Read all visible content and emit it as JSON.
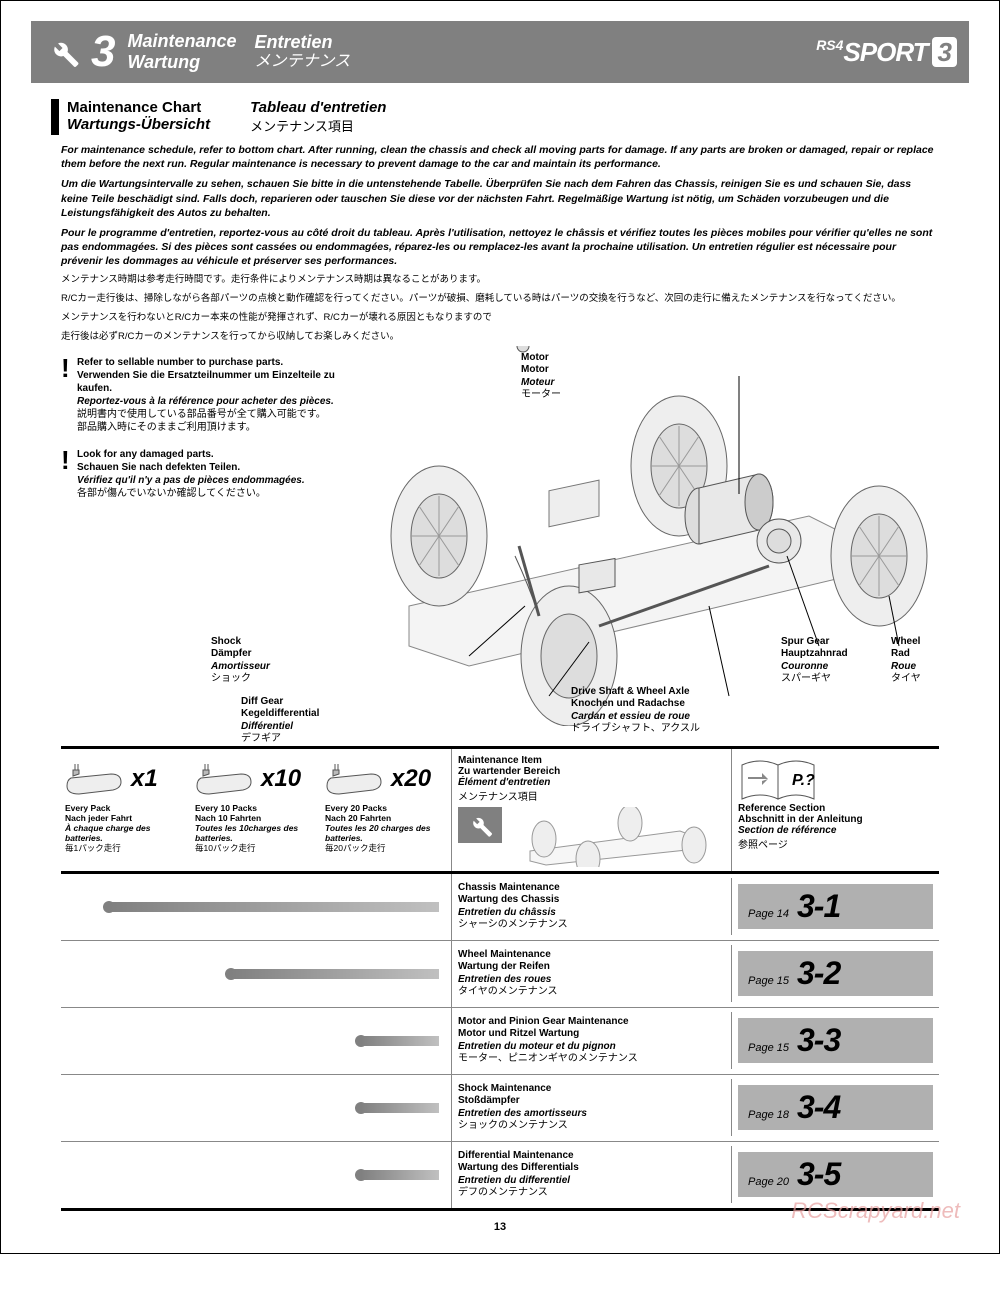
{
  "header": {
    "section_num": "3",
    "title_en": "Maintenance",
    "title_de": "Wartung",
    "title_fr": "Entretien",
    "title_jp": "メンテナンス",
    "logo_prefix": "RS4",
    "logo_main": "SPORT",
    "logo_suffix": "3"
  },
  "subheader": {
    "en": "Maintenance Chart",
    "de": "Wartungs-Übersicht",
    "fr": "Tableau d'entretien",
    "jp": "メンテナンス項目"
  },
  "intro": {
    "en": "For maintenance schedule, refer to bottom chart. After running, clean the chassis and check all moving parts for damage. If any parts are broken or damaged, repair or replace them before the next run. Regular maintenance is necessary to prevent damage to the car and maintain its performance.",
    "de": "Um die Wartungsintervalle zu sehen, schauen Sie bitte in die untenstehende Tabelle. Überprüfen Sie nach dem Fahren das Chassis, reinigen Sie es und schauen Sie, dass keine Teile beschädigt sind. Falls doch, reparieren oder tauschen Sie diese vor der nächsten Fahrt. Regelmäßige Wartung ist nötig, um Schäden vorzubeugen und die Leistungsfähigkeit des Autos zu behalten.",
    "fr": "Pour le programme d'entretien, reportez-vous au côté droit du tableau. Après l'utilisation, nettoyez le châssis et vérifiez toutes les pièces mobiles pour vérifier qu'elles ne sont pas endommagées. Si des pièces sont cassées ou endommagées, réparez-les ou remplacez-les avant la prochaine utilisation. Un entretien régulier est nécessaire pour prévenir les dommages au véhicule et préserver ses performances.",
    "jp1": "メンテナンス時期は参考走行時間です。走行条件によりメンテナンス時期は異なることがあります。",
    "jp2": "R/Cカー走行後は、掃除しながら各部パーツの点検と動作確認を行ってください。パーツが破損、磨耗している時はパーツの交換を行うなど、次回の走行に備えたメンテナンスを行なってください。",
    "jp3": "メンテナンスを行わないとR/Cカー本来の性能が発揮されず、R/Cカーが壊れる原因ともなりますので",
    "jp4": "走行後は必ずR/Cカーのメンテナンスを行ってから収納してお楽しみください。"
  },
  "notes": {
    "n1_en": "Refer to sellable number to purchase parts.",
    "n1_de": "Verwenden Sie die Ersatzteilnummer um Einzelteile zu kaufen.",
    "n1_fr": "Reportez-vous à la référence pour acheter des pièces.",
    "n1_jp1": "説明書内で使用している部品番号が全て購入可能です。",
    "n1_jp2": "部品購入時にそのままご利用頂けます。",
    "n2_en": "Look for any damaged parts.",
    "n2_de": "Schauen Sie nach defekten Teilen.",
    "n2_fr": "Vérifiez qu'il n'y a pas de pièces endommagées.",
    "n2_jp": "各部が傷んでいないか確認してください。"
  },
  "callouts": {
    "motor": {
      "en": "Motor",
      "de": "Motor",
      "fr": "Moteur",
      "jp": "モーター"
    },
    "shock": {
      "en": "Shock",
      "de": "Dämpfer",
      "fr": "Amortisseur",
      "jp": "ショック"
    },
    "diff": {
      "en": "Diff Gear",
      "de": "Kegeldifferential",
      "fr": "Différentiel",
      "jp": "デフギア"
    },
    "drive": {
      "en": "Drive Shaft & Wheel Axle",
      "de": "Knochen und Radachse",
      "fr": "Cardan et essieu de roue",
      "jp": "ドライブシャフト、アクスル"
    },
    "spur": {
      "en": "Spur Gear",
      "de": "Hauptzahnrad",
      "fr": "Couronne",
      "jp": "スパーギヤ"
    },
    "wheel": {
      "en": "Wheel",
      "de": "Rad",
      "fr": "Roue",
      "jp": "タイヤ"
    }
  },
  "thead": {
    "packs": [
      {
        "mult": "x1",
        "en": "Every Pack",
        "de": "Nach jeder Fahrt",
        "fr": "À chaque charge des batteries.",
        "jp": "毎1パック走行"
      },
      {
        "mult": "x10",
        "en": "Every 10 Packs",
        "de": "Nach 10 Fahrten",
        "fr": "Toutes les 10charges des batteries.",
        "jp": "毎10パック走行"
      },
      {
        "mult": "x20",
        "en": "Every 20 Packs",
        "de": "Nach 20 Fahrten",
        "fr": "Toutes les 20 charges des batteries.",
        "jp": "毎20パック走行"
      }
    ],
    "item": {
      "en": "Maintenance Item",
      "de": "Zu wartender Bereich",
      "fr": "Élément d'entretien",
      "jp": "メンテナンス項目"
    },
    "ref": {
      "en": "Reference Section",
      "de": "Abschnitt in der Anleitung",
      "fr": "Section de référence",
      "jp": "参照ページ"
    },
    "ref_p": "P.?"
  },
  "rows": [
    {
      "bar_start_pct": 10,
      "bar_len_pct": 88,
      "en": "Chassis Maintenance",
      "de": "Wartung des Chassis",
      "fr": "Entretien du châssis",
      "jp": "シャーシのメンテナンス",
      "page": "14",
      "sec": "3-1"
    },
    {
      "bar_start_pct": 42,
      "bar_len_pct": 56,
      "en": "Wheel Maintenance",
      "de": "Wartung der Reifen",
      "fr": "Entretien des roues",
      "jp": "タイヤのメンテナンス",
      "page": "15",
      "sec": "3-2"
    },
    {
      "bar_start_pct": 76,
      "bar_len_pct": 22,
      "en": "Motor and Pinion Gear Maintenance",
      "de": "Motor und Ritzel Wartung",
      "fr": "Entretien du moteur et du pignon",
      "jp": "モーター、ピニオンギヤのメンテナンス",
      "page": "15",
      "sec": "3-3"
    },
    {
      "bar_start_pct": 76,
      "bar_len_pct": 22,
      "en": "Shock Maintenance",
      "de": "Stoßdämpfer",
      "fr": "Entretien des amortisseurs",
      "jp": "ショックのメンテナンス",
      "page": "18",
      "sec": "3-4"
    },
    {
      "bar_start_pct": 76,
      "bar_len_pct": 22,
      "en": "Differential Maintenance",
      "de": "Wartung des Differentials",
      "fr": "Entretien du differentiel",
      "jp": "デフのメンテナンス",
      "page": "20",
      "sec": "3-5"
    }
  ],
  "page_label": "Page",
  "pagenum": "13",
  "watermark": "RCScrapyard.net",
  "colors": {
    "header_bg": "#808080",
    "bar_fill": "#808080",
    "ref_badge": "#b0b0b0"
  }
}
